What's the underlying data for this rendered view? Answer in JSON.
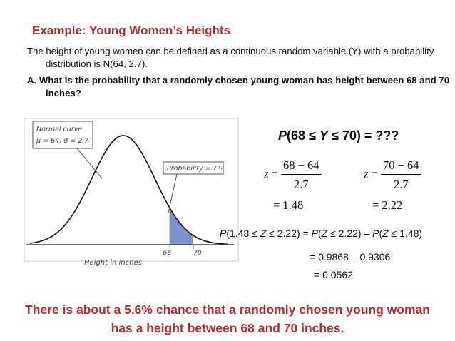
{
  "slide": {
    "title": "Example: Young Women’s Heights",
    "intro": "The height of young women can be defined as a continuous random variable (Y) with a probability distribution is N(64, 2.7).",
    "question": "A. What is the probability that a randomly chosen young woman has height between 68 and 70 inches?",
    "conclusion": "There is about a 5.6% chance that a randomly chosen young woman has a height between 68 and 70 inches."
  },
  "figure": {
    "normal_label_line1": "Normal curve",
    "normal_label_line2": "μ = 64, σ = 2.7",
    "probability_label": "Probability = ???",
    "tick_68": "68",
    "tick_70": "70",
    "axis_label": "Height in inches",
    "curve_mean": 64,
    "curve_sd": 2.7,
    "shaded_from": 68,
    "shaded_to": 70,
    "x_range": [
      56,
      73
    ],
    "colors": {
      "shade": "#7e8fd0",
      "curve": "#111111",
      "axis": "#444444"
    }
  },
  "work": {
    "probability_statement": {
      "prefix": "P",
      "mid": "(68 ≤ ",
      "var": "Y",
      "suffix": " ≤ 70) = ???"
    },
    "z1": {
      "z": "z",
      "eq": "=",
      "numerator": "68 − 64",
      "denominator": "2.7",
      "result": "= 1.48"
    },
    "z2": {
      "z": "z",
      "eq": "=",
      "numerator": "70 − 64",
      "denominator": "2.7",
      "result": "= 2.22"
    },
    "line1": {
      "p1": "P",
      "a": "(1.48 ≤ ",
      "z1": "Z",
      "b": " ≤ 2.22) = ",
      "p2": "P",
      "c": "(",
      "z2": "Z",
      "d": " ≤ 2.22) – ",
      "p3": "P",
      "e": "(",
      "z3": "Z",
      "f": " ≤ 1.48)"
    },
    "line2": "= 0.9868 – 0.9306",
    "line3": "= 0.0562"
  }
}
